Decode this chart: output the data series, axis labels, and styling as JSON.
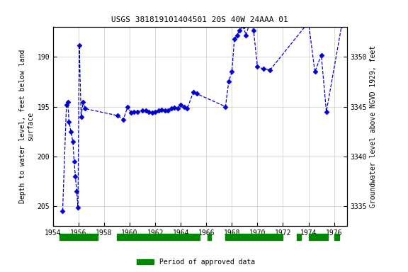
{
  "title": "USGS 381819101404501 20S 40W 24AAA 01",
  "ylim_left": [
    207,
    187
  ],
  "ylim_right": [
    3333,
    3353
  ],
  "xlim": [
    1954,
    1977
  ],
  "yticks_left": [
    190,
    195,
    200,
    205
  ],
  "yticks_right": [
    3335,
    3340,
    3345,
    3350
  ],
  "xticks": [
    1954,
    1956,
    1958,
    1960,
    1962,
    1964,
    1966,
    1968,
    1970,
    1972,
    1974,
    1976
  ],
  "data_x": [
    1954.75,
    1955.05,
    1955.15,
    1955.25,
    1955.4,
    1955.55,
    1955.65,
    1955.75,
    1955.85,
    1955.95,
    1956.05,
    1956.2,
    1956.35,
    1956.5,
    1959.05,
    1959.5,
    1959.85,
    1960.1,
    1960.35,
    1960.6,
    1961.0,
    1961.25,
    1961.5,
    1961.75,
    1962.0,
    1962.25,
    1962.5,
    1962.75,
    1963.0,
    1963.25,
    1963.5,
    1963.75,
    1964.0,
    1964.25,
    1964.5,
    1965.0,
    1965.25,
    1967.5,
    1967.75,
    1968.0,
    1968.2,
    1968.4,
    1968.6,
    1968.9,
    1969.1,
    1969.4,
    1969.7,
    1970.0,
    1970.5,
    1971.0,
    1974.0,
    1974.5,
    1975.0,
    1975.4,
    1976.6
  ],
  "data_y": [
    205.5,
    194.8,
    194.5,
    196.5,
    197.5,
    198.5,
    200.5,
    202.0,
    203.5,
    205.2,
    188.8,
    196.0,
    194.5,
    195.2,
    195.9,
    196.3,
    195.0,
    195.6,
    195.5,
    195.5,
    195.4,
    195.4,
    195.5,
    195.6,
    195.5,
    195.4,
    195.3,
    195.4,
    195.4,
    195.2,
    195.1,
    195.2,
    194.8,
    195.0,
    195.2,
    193.5,
    193.7,
    195.0,
    192.5,
    191.5,
    188.2,
    187.8,
    187.3,
    186.9,
    187.8,
    186.6,
    187.3,
    191.0,
    191.2,
    191.3,
    186.5,
    191.5,
    189.8,
    195.5,
    186.8
  ],
  "data_color": "#0000cc",
  "line_color": "#0000cc",
  "marker_size": 3.5,
  "green_bars": [
    [
      1954.5,
      1957.5
    ],
    [
      1959.0,
      1965.5
    ],
    [
      1966.1,
      1966.4
    ],
    [
      1967.5,
      1972.0
    ],
    [
      1973.1,
      1973.4
    ],
    [
      1974.0,
      1975.5
    ],
    [
      1976.0,
      1976.4
    ]
  ],
  "background_color": "#ffffff",
  "grid_color": "#cccccc",
  "legend_label": "Period of approved data",
  "legend_color": "#008800"
}
